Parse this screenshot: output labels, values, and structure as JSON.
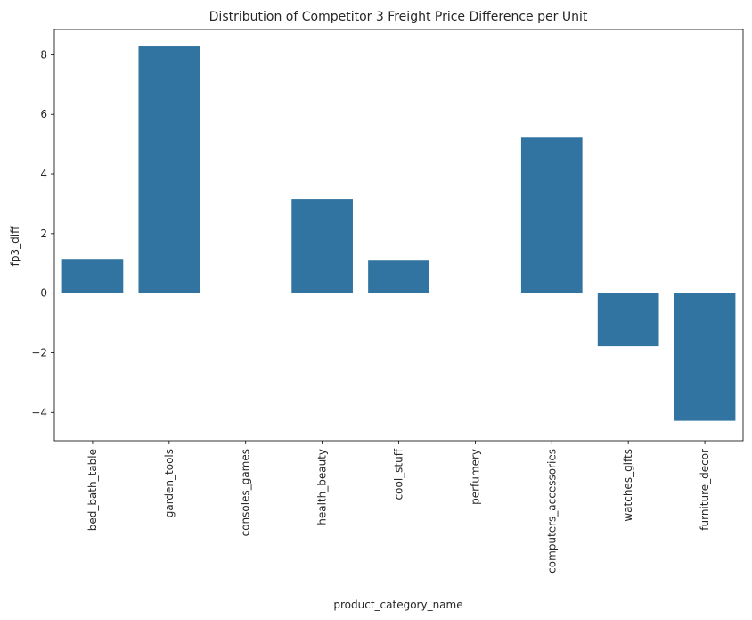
{
  "chart_data": {
    "type": "bar",
    "title": "Distribution of Competitor 3 Freight Price Difference per Unit",
    "xlabel": "product_category_name",
    "ylabel": "fp3_diff",
    "categories": [
      "bed_bath_table",
      "garden_tools",
      "consoles_games",
      "health_beauty",
      "cool_stuff",
      "perfumery",
      "computers_accessories",
      "watches_gifts",
      "furniture_decor"
    ],
    "values": [
      1.15,
      8.28,
      0.0,
      3.16,
      1.09,
      0.0,
      5.22,
      -1.78,
      -4.28
    ],
    "yticks": [
      -4,
      -2,
      0,
      2,
      4,
      6,
      8
    ],
    "ytick_labels": [
      "−4",
      "−2",
      "0",
      "2",
      "4",
      "6",
      "8"
    ],
    "ylim": [
      -4.95,
      8.85
    ],
    "grid": false,
    "bar_color": "#3274a1"
  }
}
